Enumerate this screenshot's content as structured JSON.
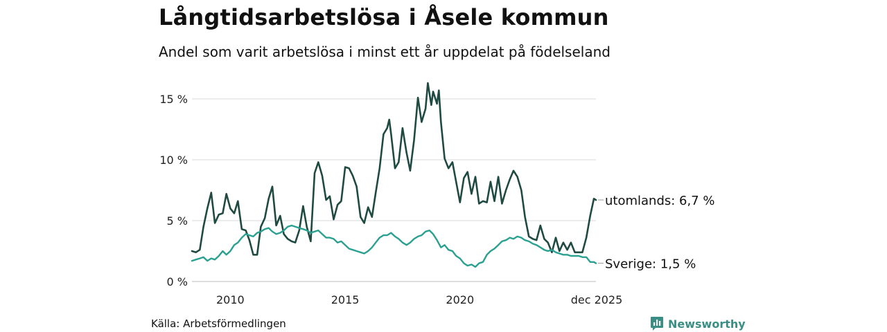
{
  "colors": {
    "utomlands": "#1f4a42",
    "sverige": "#2aa190",
    "grid": "#d9d9d9",
    "brand": "#3a8f84"
  },
  "source": "Källa: Arbetsförmedlingen",
  "brand": {
    "name": "Newsworthy",
    "icon": "bar-chart-icon"
  },
  "chart_data": {
    "type": "line",
    "title": "Långtidsarbetslösa i Åsele kommun",
    "subtitle": "Andel som varit arbetslösa i minst ett år uppdelat på födelseland",
    "xlabel": "",
    "ylabel": "",
    "x_range": [
      2008.33,
      2025.92
    ],
    "ylim": [
      0,
      16.5
    ],
    "y_ticks": [
      {
        "value": 0,
        "label": "0 %"
      },
      {
        "value": 5,
        "label": "5 %"
      },
      {
        "value": 10,
        "label": "10 %"
      },
      {
        "value": 15,
        "label": "15 %"
      }
    ],
    "x_ticks": [
      {
        "value": 2010,
        "label": "2010"
      },
      {
        "value": 2015,
        "label": "2015"
      },
      {
        "value": 2020,
        "label": "2020"
      },
      {
        "value": 2025.92,
        "label": "dec 2025"
      }
    ],
    "grid": true,
    "legend": "end-of-line labels",
    "series": [
      {
        "name": "utomlands",
        "end_label": "utomlands: 6,7 %",
        "points": [
          [
            2008.33,
            2.5
          ],
          [
            2008.5,
            2.4
          ],
          [
            2008.67,
            2.6
          ],
          [
            2008.83,
            4.5
          ],
          [
            2009.0,
            6.0
          ],
          [
            2009.17,
            7.3
          ],
          [
            2009.33,
            4.8
          ],
          [
            2009.5,
            5.5
          ],
          [
            2009.67,
            5.6
          ],
          [
            2009.83,
            7.2
          ],
          [
            2010.0,
            6.0
          ],
          [
            2010.17,
            5.6
          ],
          [
            2010.33,
            6.6
          ],
          [
            2010.5,
            4.3
          ],
          [
            2010.67,
            4.2
          ],
          [
            2010.83,
            3.4
          ],
          [
            2011.0,
            2.2
          ],
          [
            2011.17,
            2.2
          ],
          [
            2011.33,
            4.5
          ],
          [
            2011.5,
            5.2
          ],
          [
            2011.67,
            6.8
          ],
          [
            2011.83,
            7.8
          ],
          [
            2012.0,
            4.6
          ],
          [
            2012.17,
            5.4
          ],
          [
            2012.33,
            3.9
          ],
          [
            2012.5,
            3.5
          ],
          [
            2012.67,
            3.3
          ],
          [
            2012.83,
            3.2
          ],
          [
            2013.0,
            4.2
          ],
          [
            2013.17,
            6.2
          ],
          [
            2013.33,
            4.5
          ],
          [
            2013.5,
            3.3
          ],
          [
            2013.67,
            8.9
          ],
          [
            2013.83,
            9.8
          ],
          [
            2014.0,
            8.7
          ],
          [
            2014.17,
            6.7
          ],
          [
            2014.33,
            7.0
          ],
          [
            2014.5,
            5.1
          ],
          [
            2014.67,
            6.3
          ],
          [
            2014.83,
            6.6
          ],
          [
            2015.0,
            9.4
          ],
          [
            2015.17,
            9.3
          ],
          [
            2015.33,
            8.7
          ],
          [
            2015.5,
            7.8
          ],
          [
            2015.67,
            5.3
          ],
          [
            2015.83,
            4.8
          ],
          [
            2016.0,
            6.1
          ],
          [
            2016.17,
            5.3
          ],
          [
            2016.33,
            7.3
          ],
          [
            2016.5,
            9.3
          ],
          [
            2016.67,
            12.1
          ],
          [
            2016.83,
            12.6
          ],
          [
            2016.92,
            13.3
          ],
          [
            2017.0,
            12.1
          ],
          [
            2017.08,
            10.8
          ],
          [
            2017.17,
            9.3
          ],
          [
            2017.33,
            9.8
          ],
          [
            2017.5,
            12.6
          ],
          [
            2017.67,
            10.6
          ],
          [
            2017.83,
            9.1
          ],
          [
            2018.0,
            11.6
          ],
          [
            2018.17,
            15.1
          ],
          [
            2018.33,
            13.1
          ],
          [
            2018.5,
            14.2
          ],
          [
            2018.6,
            16.3
          ],
          [
            2018.75,
            14.5
          ],
          [
            2018.83,
            15.6
          ],
          [
            2019.0,
            14.6
          ],
          [
            2019.08,
            15.7
          ],
          [
            2019.17,
            13.1
          ],
          [
            2019.33,
            10.1
          ],
          [
            2019.5,
            9.3
          ],
          [
            2019.67,
            9.8
          ],
          [
            2019.83,
            8.2
          ],
          [
            2020.0,
            6.5
          ],
          [
            2020.17,
            8.5
          ],
          [
            2020.33,
            9.0
          ],
          [
            2020.5,
            7.2
          ],
          [
            2020.67,
            8.6
          ],
          [
            2020.83,
            6.4
          ],
          [
            2021.0,
            6.6
          ],
          [
            2021.17,
            6.5
          ],
          [
            2021.33,
            8.2
          ],
          [
            2021.5,
            6.6
          ],
          [
            2021.67,
            8.6
          ],
          [
            2021.83,
            6.4
          ],
          [
            2022.0,
            7.5
          ],
          [
            2022.17,
            8.4
          ],
          [
            2022.33,
            9.1
          ],
          [
            2022.5,
            8.6
          ],
          [
            2022.67,
            7.5
          ],
          [
            2022.83,
            5.3
          ],
          [
            2023.0,
            3.7
          ],
          [
            2023.17,
            3.5
          ],
          [
            2023.33,
            3.4
          ],
          [
            2023.5,
            4.6
          ],
          [
            2023.67,
            3.5
          ],
          [
            2023.83,
            3.2
          ],
          [
            2024.0,
            2.4
          ],
          [
            2024.17,
            3.6
          ],
          [
            2024.33,
            2.5
          ],
          [
            2024.5,
            3.2
          ],
          [
            2024.67,
            2.6
          ],
          [
            2024.83,
            3.2
          ],
          [
            2025.0,
            2.4
          ],
          [
            2025.17,
            2.4
          ],
          [
            2025.33,
            2.4
          ],
          [
            2025.5,
            3.6
          ],
          [
            2025.67,
            5.4
          ],
          [
            2025.83,
            6.8
          ],
          [
            2025.92,
            6.7
          ]
        ]
      },
      {
        "name": "Sverige",
        "end_label": "Sverige: 1,5 %",
        "points": [
          [
            2008.33,
            1.7
          ],
          [
            2008.5,
            1.8
          ],
          [
            2008.67,
            1.9
          ],
          [
            2008.83,
            2.0
          ],
          [
            2009.0,
            1.7
          ],
          [
            2009.17,
            1.9
          ],
          [
            2009.33,
            1.8
          ],
          [
            2009.5,
            2.1
          ],
          [
            2009.67,
            2.5
          ],
          [
            2009.83,
            2.2
          ],
          [
            2010.0,
            2.5
          ],
          [
            2010.17,
            3.0
          ],
          [
            2010.33,
            3.2
          ],
          [
            2010.5,
            3.6
          ],
          [
            2010.67,
            3.9
          ],
          [
            2010.83,
            3.8
          ],
          [
            2011.0,
            3.7
          ],
          [
            2011.17,
            4.0
          ],
          [
            2011.33,
            4.1
          ],
          [
            2011.5,
            4.3
          ],
          [
            2011.67,
            4.4
          ],
          [
            2011.83,
            4.1
          ],
          [
            2012.0,
            3.9
          ],
          [
            2012.17,
            4.0
          ],
          [
            2012.33,
            4.2
          ],
          [
            2012.5,
            4.5
          ],
          [
            2012.67,
            4.6
          ],
          [
            2012.83,
            4.5
          ],
          [
            2013.0,
            4.4
          ],
          [
            2013.17,
            4.3
          ],
          [
            2013.33,
            4.2
          ],
          [
            2013.5,
            4.0
          ],
          [
            2013.67,
            4.1
          ],
          [
            2013.83,
            4.2
          ],
          [
            2014.0,
            3.9
          ],
          [
            2014.17,
            3.6
          ],
          [
            2014.33,
            3.6
          ],
          [
            2014.5,
            3.5
          ],
          [
            2014.67,
            3.2
          ],
          [
            2014.83,
            3.3
          ],
          [
            2015.0,
            3.0
          ],
          [
            2015.17,
            2.7
          ],
          [
            2015.33,
            2.6
          ],
          [
            2015.5,
            2.5
          ],
          [
            2015.67,
            2.4
          ],
          [
            2015.83,
            2.3
          ],
          [
            2016.0,
            2.5
          ],
          [
            2016.17,
            2.8
          ],
          [
            2016.33,
            3.2
          ],
          [
            2016.5,
            3.6
          ],
          [
            2016.67,
            3.8
          ],
          [
            2016.83,
            3.8
          ],
          [
            2017.0,
            4.0
          ],
          [
            2017.17,
            3.7
          ],
          [
            2017.33,
            3.5
          ],
          [
            2017.5,
            3.2
          ],
          [
            2017.67,
            3.0
          ],
          [
            2017.83,
            3.2
          ],
          [
            2018.0,
            3.5
          ],
          [
            2018.17,
            3.7
          ],
          [
            2018.33,
            3.8
          ],
          [
            2018.5,
            4.1
          ],
          [
            2018.67,
            4.2
          ],
          [
            2018.83,
            3.9
          ],
          [
            2019.0,
            3.4
          ],
          [
            2019.17,
            2.8
          ],
          [
            2019.33,
            3.0
          ],
          [
            2019.5,
            2.6
          ],
          [
            2019.67,
            2.5
          ],
          [
            2019.83,
            2.1
          ],
          [
            2020.0,
            1.9
          ],
          [
            2020.17,
            1.5
          ],
          [
            2020.33,
            1.3
          ],
          [
            2020.5,
            1.4
          ],
          [
            2020.67,
            1.2
          ],
          [
            2020.83,
            1.5
          ],
          [
            2021.0,
            1.6
          ],
          [
            2021.17,
            2.2
          ],
          [
            2021.33,
            2.5
          ],
          [
            2021.5,
            2.7
          ],
          [
            2021.67,
            3.0
          ],
          [
            2021.83,
            3.3
          ],
          [
            2022.0,
            3.4
          ],
          [
            2022.17,
            3.6
          ],
          [
            2022.33,
            3.5
          ],
          [
            2022.5,
            3.7
          ],
          [
            2022.67,
            3.6
          ],
          [
            2022.83,
            3.4
          ],
          [
            2023.0,
            3.3
          ],
          [
            2023.17,
            3.1
          ],
          [
            2023.33,
            3.0
          ],
          [
            2023.5,
            2.8
          ],
          [
            2023.67,
            2.6
          ],
          [
            2023.83,
            2.5
          ],
          [
            2024.0,
            2.6
          ],
          [
            2024.17,
            2.4
          ],
          [
            2024.33,
            2.3
          ],
          [
            2024.5,
            2.2
          ],
          [
            2024.67,
            2.2
          ],
          [
            2024.83,
            2.1
          ],
          [
            2025.0,
            2.1
          ],
          [
            2025.17,
            2.1
          ],
          [
            2025.33,
            2.0
          ],
          [
            2025.5,
            2.0
          ],
          [
            2025.67,
            1.6
          ],
          [
            2025.83,
            1.6
          ],
          [
            2025.92,
            1.5
          ]
        ]
      }
    ]
  }
}
